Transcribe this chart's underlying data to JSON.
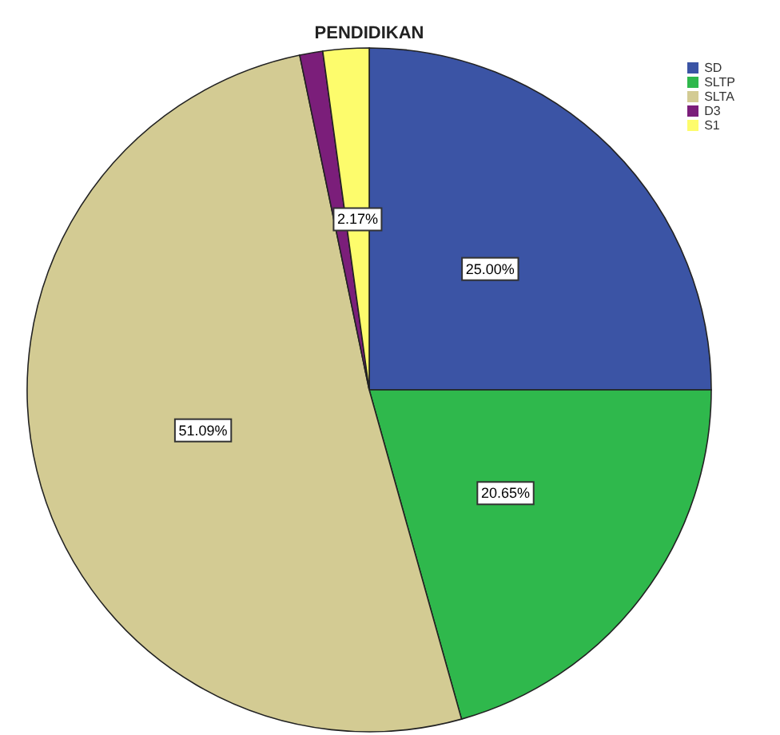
{
  "chart_data": {
    "type": "pie",
    "title": "PENDIDIKAN",
    "categories": [
      "SD",
      "SLTP",
      "SLTA",
      "D3",
      "S1"
    ],
    "values": [
      25.0,
      20.65,
      51.09,
      1.09,
      2.17
    ],
    "colors": [
      "#3b54a5",
      "#2fb84c",
      "#d3cb93",
      "#7b1e7a",
      "#fdfc6c"
    ],
    "value_labels": [
      "25.00%",
      "20.65%",
      "51.09%",
      null,
      "2.17%"
    ],
    "legend": "top right"
  }
}
